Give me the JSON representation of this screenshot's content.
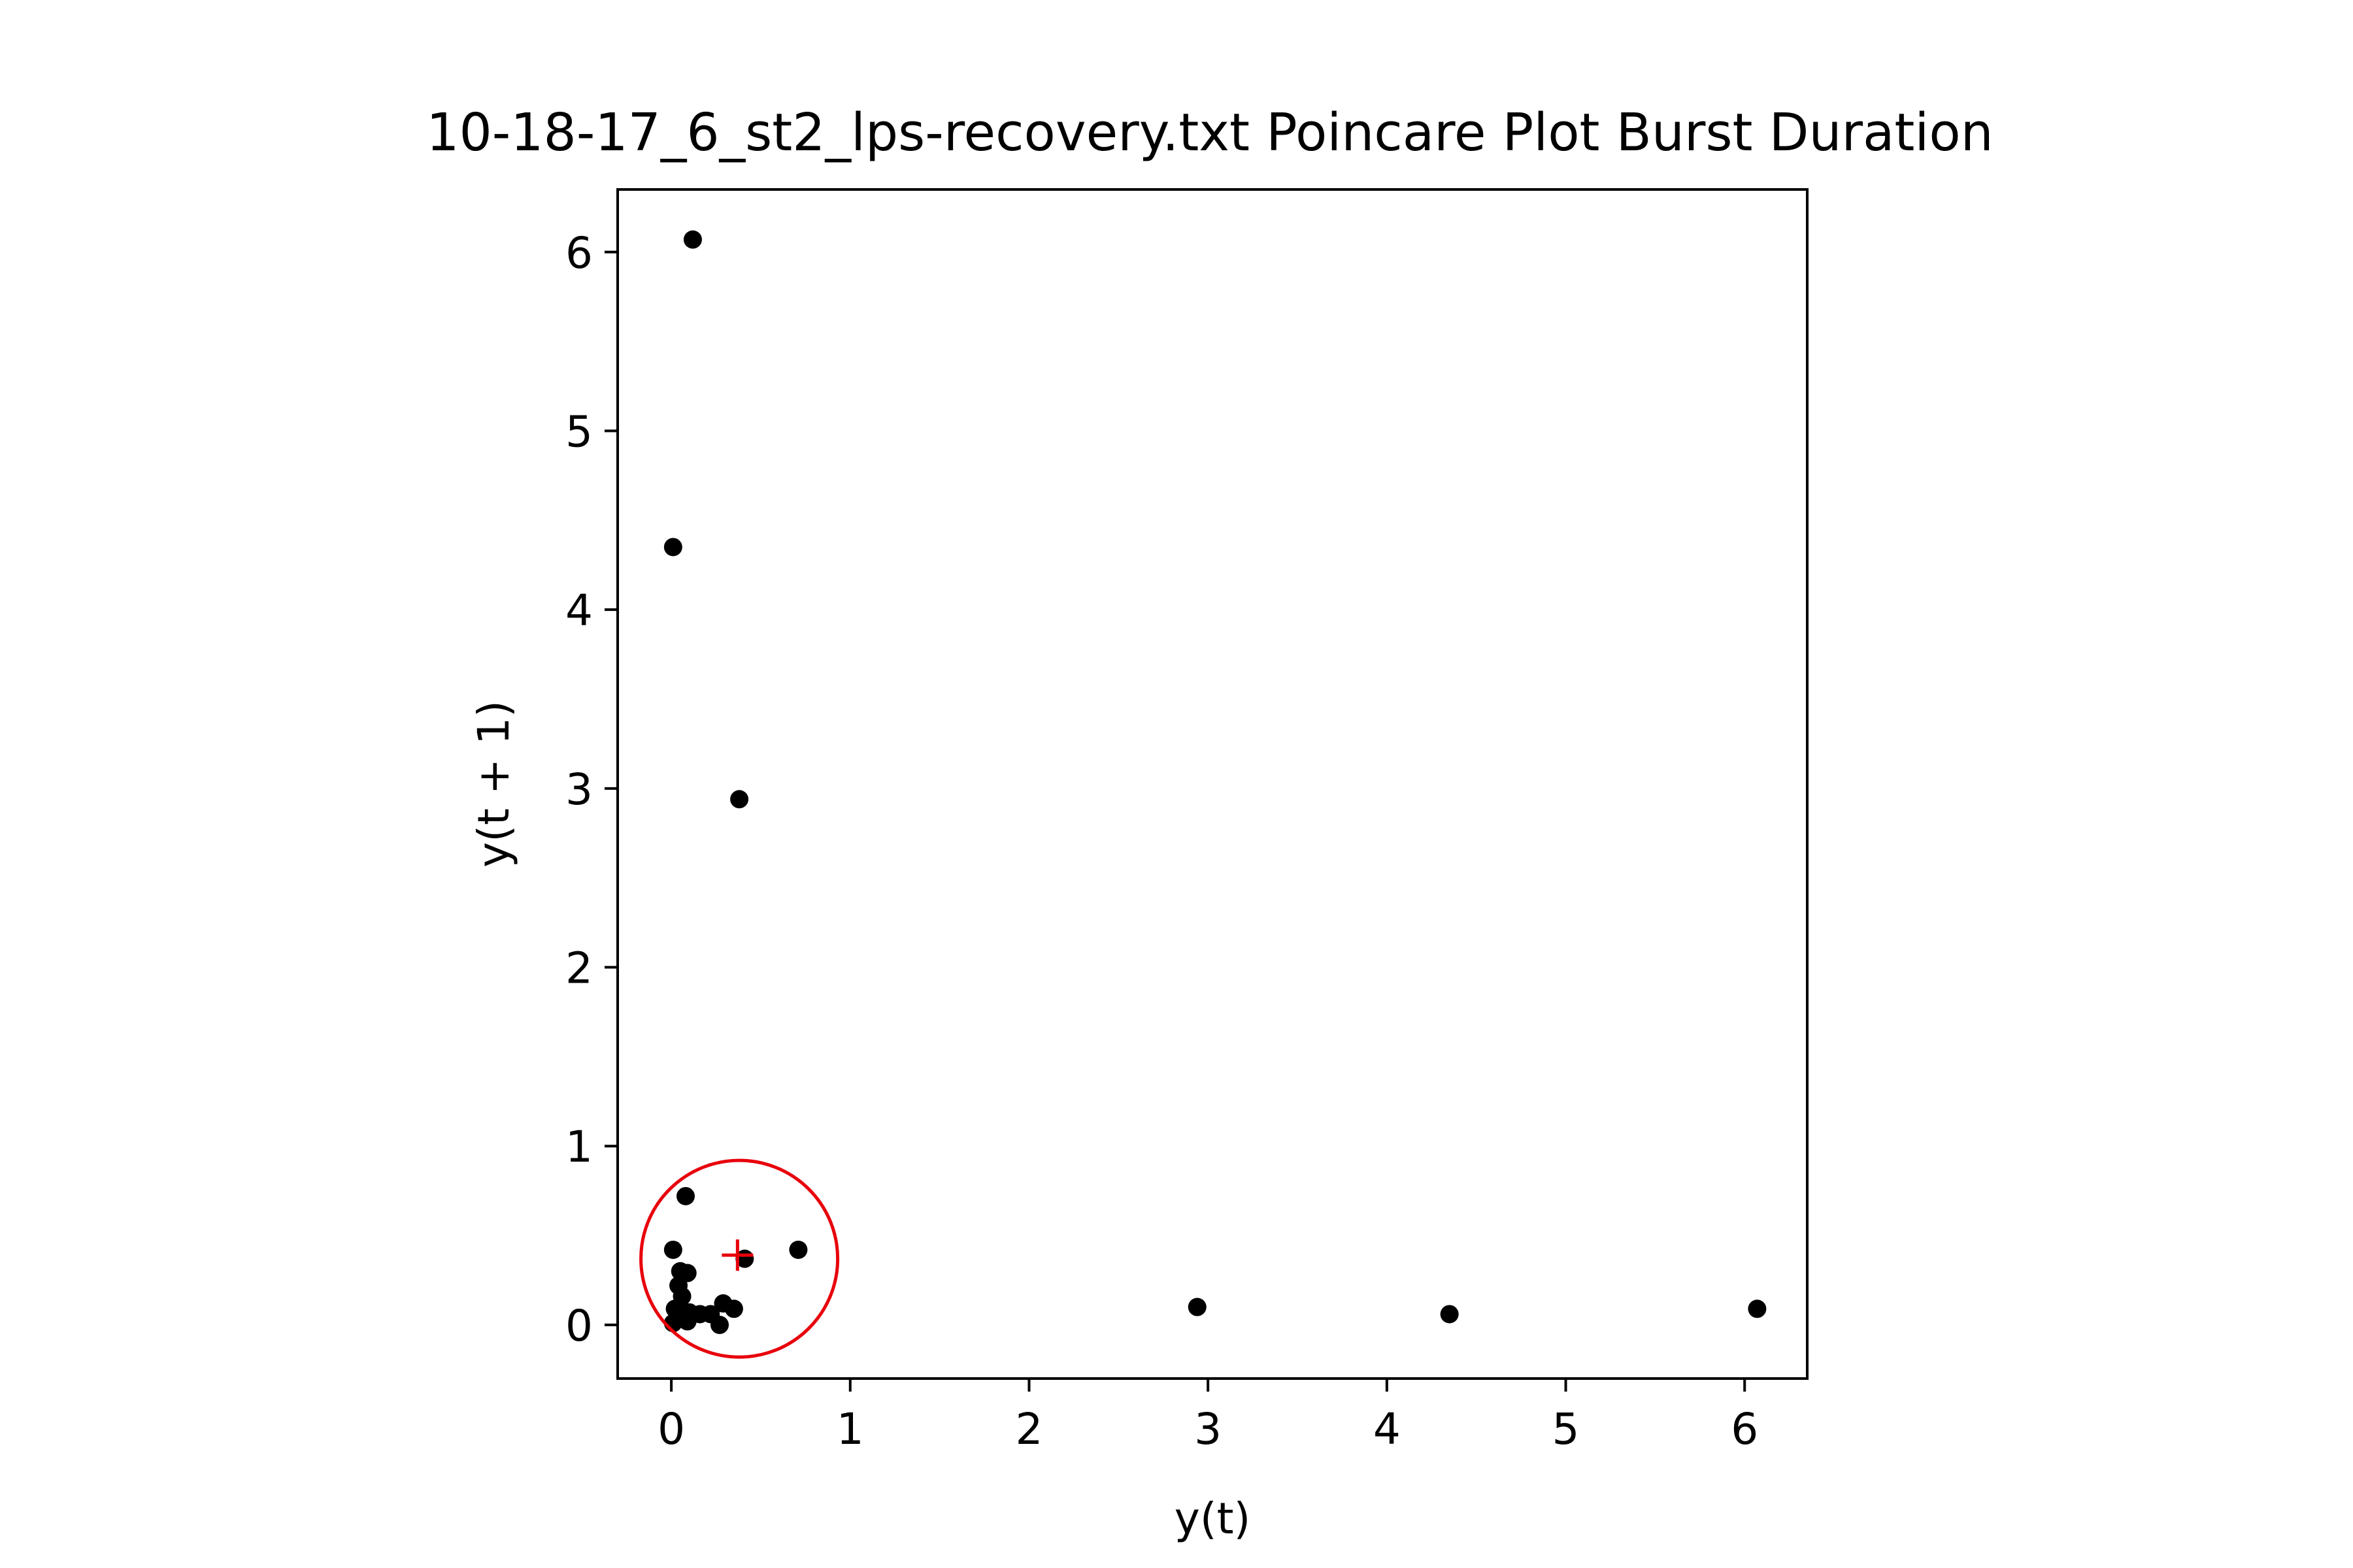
{
  "chart_data": {
    "type": "scatter",
    "title": "10-18-17_6_st2_lps-recovery.txt Poincare Plot Burst Duration",
    "xlabel": "y(t)",
    "ylabel": "y(t + 1)",
    "xlim": [
      -0.3,
      6.35
    ],
    "ylim": [
      -0.3,
      6.35
    ],
    "xticks": [
      0,
      1,
      2,
      3,
      4,
      5,
      6
    ],
    "yticks": [
      0,
      1,
      2,
      3,
      4,
      5,
      6
    ],
    "grid": false,
    "marker_color": "#000000",
    "points": [
      {
        "x": 0.12,
        "y": 6.07
      },
      {
        "x": 0.01,
        "y": 4.35
      },
      {
        "x": 0.38,
        "y": 2.94
      },
      {
        "x": 0.08,
        "y": 0.72
      },
      {
        "x": 0.01,
        "y": 0.42
      },
      {
        "x": 0.71,
        "y": 0.42
      },
      {
        "x": 0.41,
        "y": 0.37
      },
      {
        "x": 0.05,
        "y": 0.3
      },
      {
        "x": 0.09,
        "y": 0.29
      },
      {
        "x": 0.04,
        "y": 0.22
      },
      {
        "x": 0.06,
        "y": 0.16
      },
      {
        "x": 0.29,
        "y": 0.12
      },
      {
        "x": 0.02,
        "y": 0.09
      },
      {
        "x": 0.35,
        "y": 0.09
      },
      {
        "x": 0.1,
        "y": 0.07
      },
      {
        "x": 0.16,
        "y": 0.06
      },
      {
        "x": 0.22,
        "y": 0.06
      },
      {
        "x": 0.07,
        "y": 0.04
      },
      {
        "x": 0.01,
        "y": 0.01
      },
      {
        "x": 0.09,
        "y": 0.02
      },
      {
        "x": 0.27,
        "y": 0.0
      },
      {
        "x": 2.94,
        "y": 0.1
      },
      {
        "x": 4.35,
        "y": 0.06
      },
      {
        "x": 6.07,
        "y": 0.09
      }
    ],
    "overlay": {
      "color": "#e8000b",
      "center_marker": {
        "x": 0.37,
        "y": 0.39
      },
      "circle": {
        "cx": 0.38,
        "cy": 0.37,
        "r": 0.55
      }
    }
  }
}
